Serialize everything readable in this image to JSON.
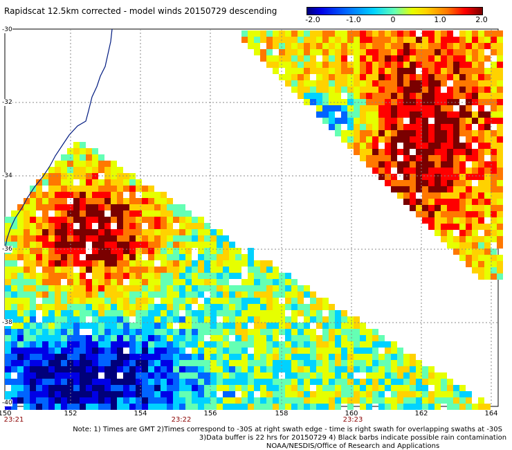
{
  "title": "Rapidscat 12.5km corrected - model winds 20150729 descending",
  "colorbar": {
    "ticks": [
      "-2.0",
      "-1.0",
      "0",
      "1.0",
      "2.0"
    ],
    "colors": [
      "#00007a",
      "#0000e6",
      "#0064ff",
      "#00d2ff",
      "#64ffb4",
      "#e6ff00",
      "#ffd200",
      "#ff7800",
      "#ff0000",
      "#7a0000"
    ]
  },
  "map": {
    "lat_labels": [
      "-30",
      "-32",
      "-34",
      "-36",
      "-38",
      "-40"
    ],
    "lon_labels": [
      "150",
      "152",
      "154",
      "156",
      "158",
      "160",
      "162",
      "164"
    ],
    "swath_times": [
      "23:21",
      "23:22",
      "23:23"
    ]
  },
  "notes": {
    "line1": "Note: 1) Times are GMT 2)Times correspond to -30S at right swath edge - time is right swath for overlapping swaths at -30S",
    "line2": "3)Data buffer is 22 hrs for 20150729 4) Black barbs indicate possible rain contamination",
    "line3": "NOAA/NESDIS/Office of Research and Applications"
  }
}
